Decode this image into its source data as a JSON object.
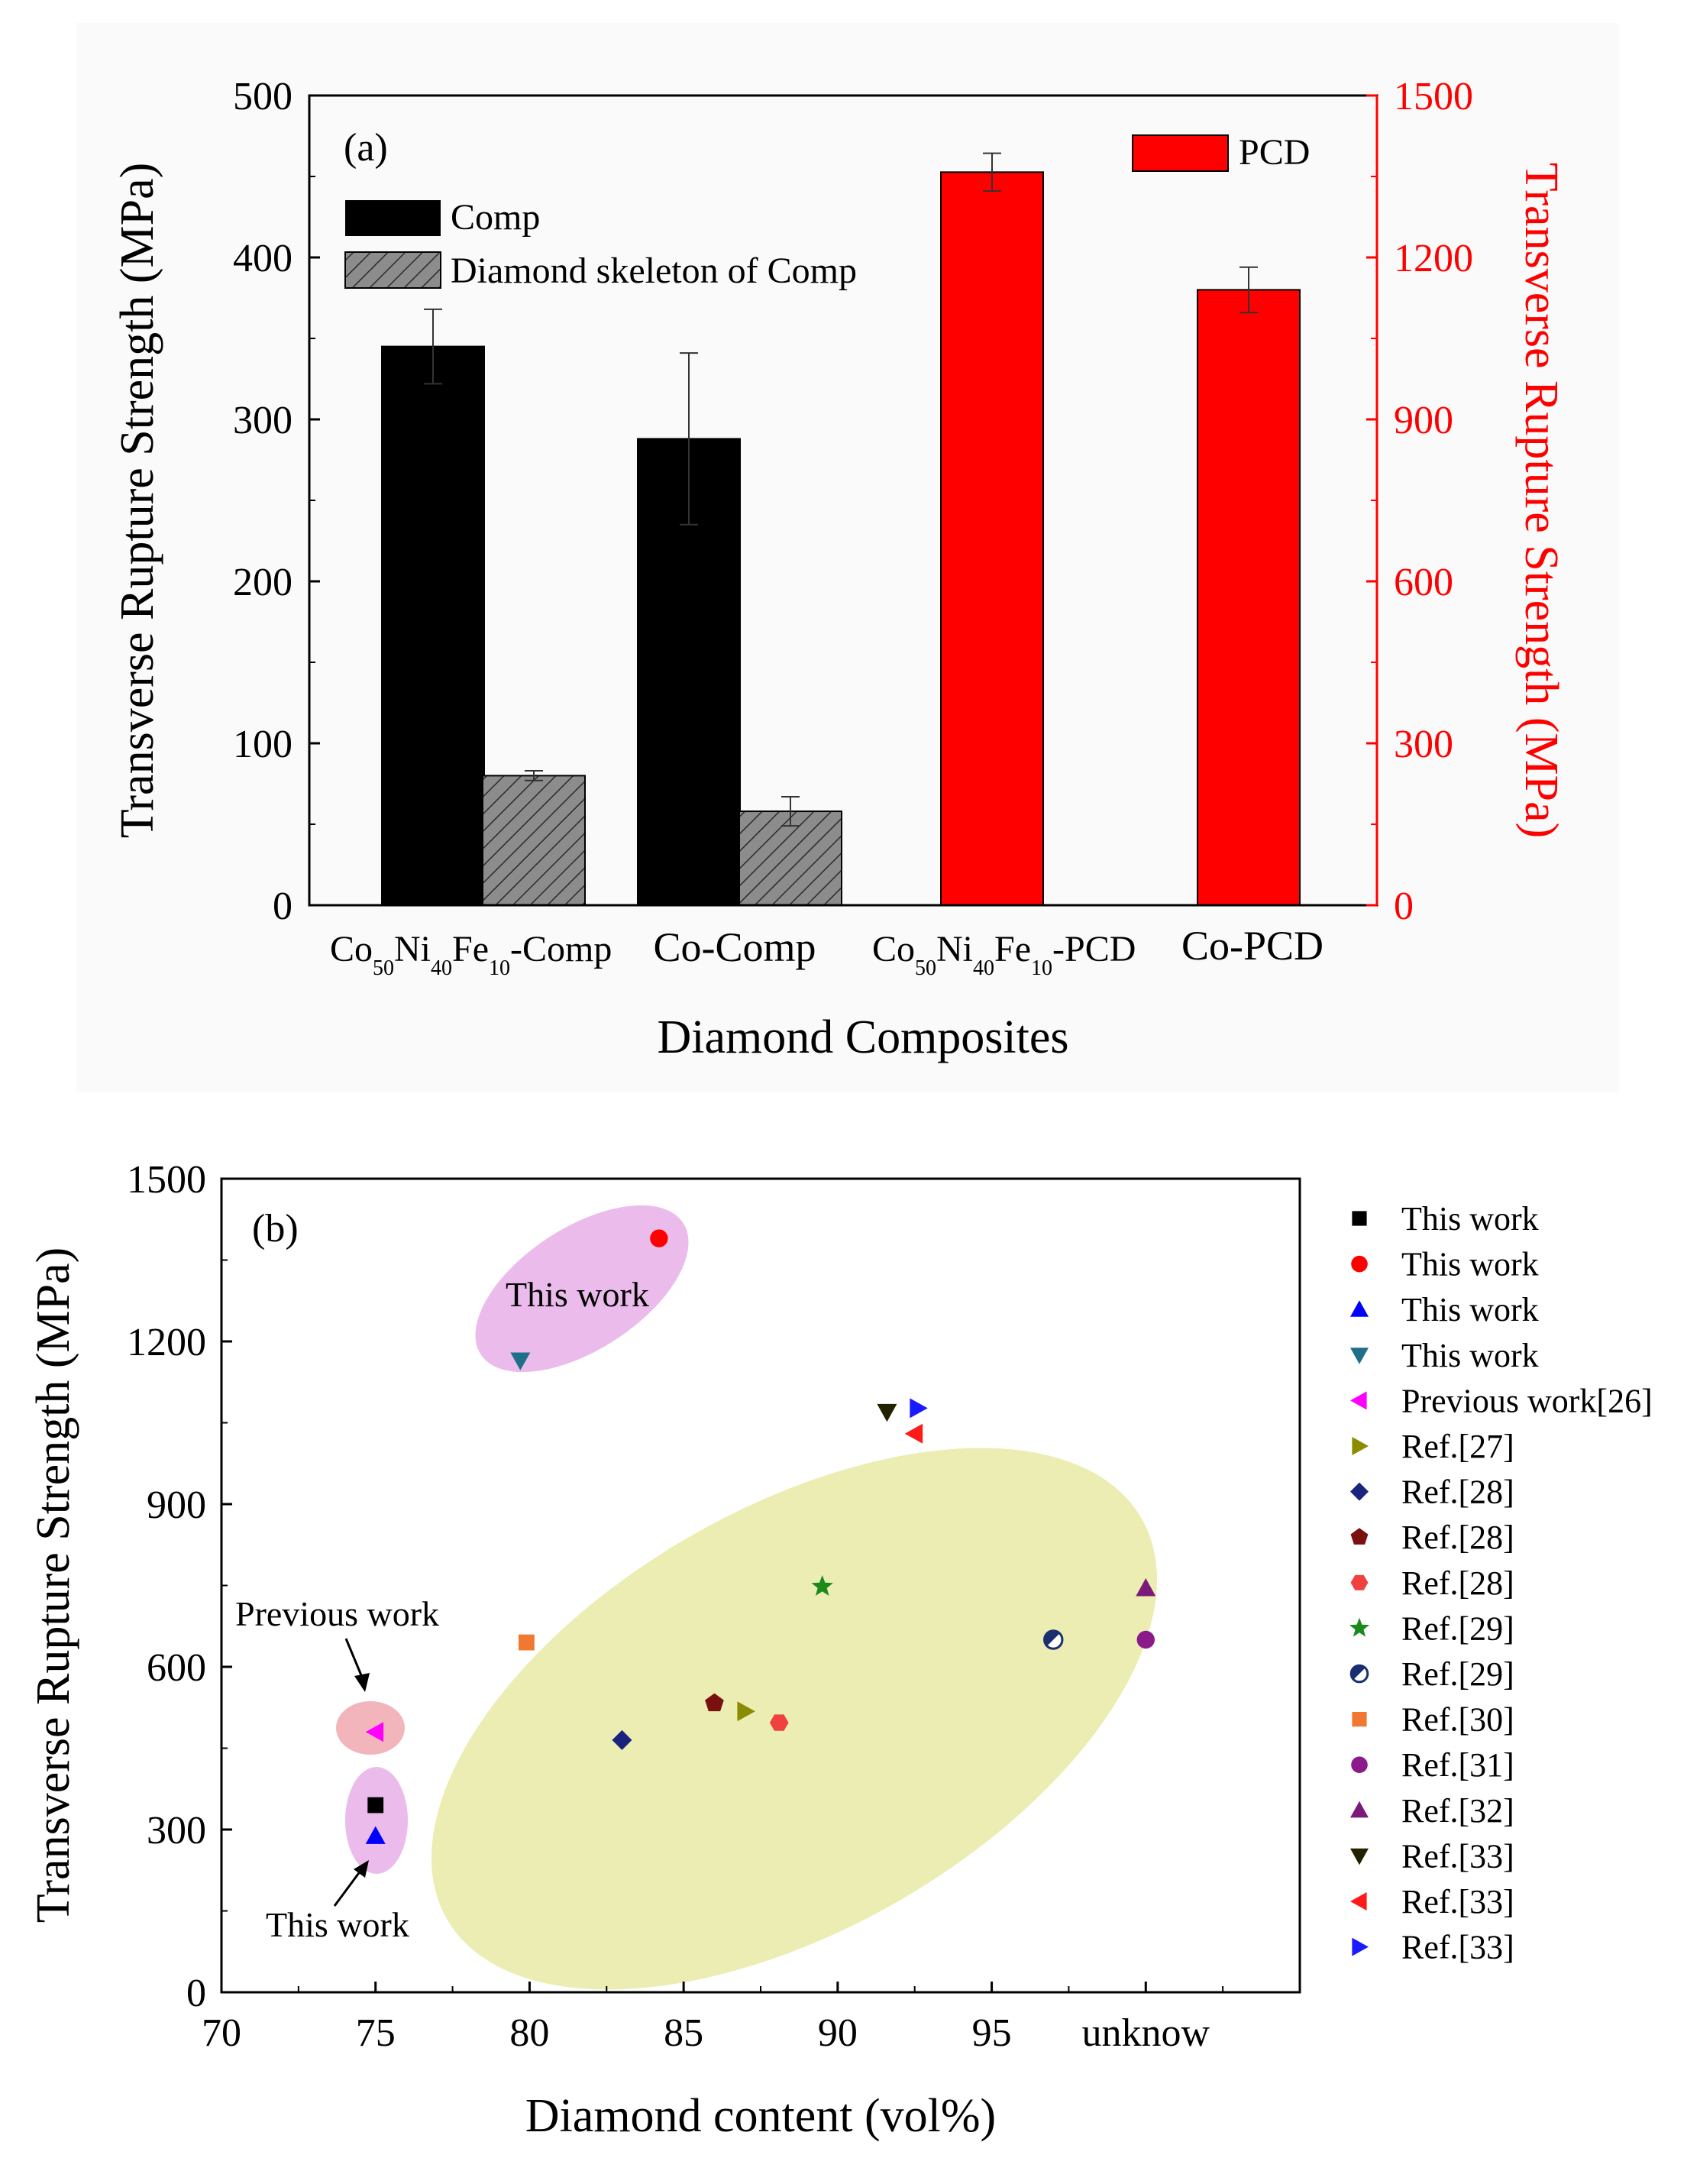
{
  "chart_data": [
    {
      "type": "bar",
      "panel_label": "(a)",
      "xlabel": "Diamond Composites",
      "ylabel": "Transverse Rupture Strength (MPa)",
      "ylabel_right": "Transverse Rupture Strength (MPa)",
      "ylim": [
        0,
        500
      ],
      "ylim_right": [
        0,
        1500
      ],
      "yticks": [
        "0",
        "100",
        "200",
        "300",
        "400",
        "500"
      ],
      "yticks_right": [
        "0",
        "300",
        "600",
        "900",
        "1200",
        "1500"
      ],
      "categories": [
        {
          "main1": "Co",
          "sub1": "50",
          "main2": "Ni",
          "sub2": "40",
          "main3": "Fe",
          "sub3": "10",
          "tail": "-Comp"
        },
        {
          "text": "Co-Comp"
        },
        {
          "main1": "Co",
          "sub1": "50",
          "main2": "Ni",
          "sub2": "40",
          "main3": "Fe",
          "sub3": "10",
          "tail": "-PCD"
        },
        {
          "text": "Co-PCD"
        }
      ],
      "series": [
        {
          "name": "Comp",
          "axis": "left",
          "color": "#000000",
          "pattern": "solid",
          "values": [
            345,
            288,
            null,
            null
          ],
          "errors": [
            23,
            53,
            null,
            null
          ]
        },
        {
          "name": "Diamond skeleton of Comp",
          "axis": "left",
          "color": "#808080",
          "pattern": "hatched",
          "values": [
            80,
            58,
            null,
            null
          ],
          "errors": [
            3,
            9,
            null,
            null
          ]
        },
        {
          "name": "PCD",
          "axis": "right",
          "color": "#ff0000",
          "pattern": "solid",
          "values": [
            null,
            null,
            1358,
            1140
          ],
          "errors": [
            null,
            null,
            35,
            42
          ]
        }
      ],
      "right_axis_color": "#ff0000"
    },
    {
      "type": "scatter",
      "panel_label": "(b)",
      "xlabel": "Diamond content (vol%)",
      "ylabel": "Transverse Rupture Strength (MPa)",
      "xlim": [
        70,
        105
      ],
      "ylim": [
        0,
        1500
      ],
      "xticks": [
        "70",
        "75",
        "80",
        "85",
        "90",
        "95",
        "unknow"
      ],
      "yticks": [
        "0",
        "300",
        "600",
        "900",
        "1200",
        "1500"
      ],
      "annotations": [
        {
          "text": "This work",
          "target": "upper cluster"
        },
        {
          "text": "Previous work",
          "target": "previous work point"
        },
        {
          "text": "This work",
          "target": "lower cluster"
        }
      ],
      "series": [
        {
          "name": "This work",
          "marker": "square",
          "color": "#000000",
          "x": 75,
          "y": 345
        },
        {
          "name": "This work",
          "marker": "circle",
          "color": "#ff0000",
          "x": 84.2,
          "y": 1390
        },
        {
          "name": "This work",
          "marker": "triangle-up",
          "color": "#0000ff",
          "x": 75,
          "y": 288
        },
        {
          "name": "This work",
          "marker": "triangle-down",
          "color": "#1f6f8b",
          "x": 79.7,
          "y": 1165
        },
        {
          "name": "Previous work[26]",
          "marker": "triangle-left",
          "color": "#ff00ff",
          "x": 75,
          "y": 480
        },
        {
          "name": "Ref.[27]",
          "marker": "triangle-right",
          "color": "#8b8b00",
          "x": 87,
          "y": 518
        },
        {
          "name": "Ref.[28]",
          "marker": "diamond",
          "color": "#1a237e",
          "x": 83,
          "y": 465
        },
        {
          "name": "Ref.[28]",
          "marker": "pentagon",
          "color": "#7b1010",
          "x": 86,
          "y": 533
        },
        {
          "name": "Ref.[28]",
          "marker": "hexagon",
          "color": "#f04040",
          "x": 88.1,
          "y": 497
        },
        {
          "name": "Ref.[29]",
          "marker": "star",
          "color": "#1a8a1a",
          "x": 89.5,
          "y": 748
        },
        {
          "name": "Ref.[29]",
          "marker": "half-circle",
          "color": "#1a2f6f",
          "x": 97,
          "y": 650
        },
        {
          "name": "Ref.[30]",
          "marker": "square",
          "color": "#f07830",
          "x": 79.9,
          "y": 645
        },
        {
          "name": "Ref.[31]",
          "marker": "circle",
          "color": "#8b1a8b",
          "x": 100,
          "y": 650
        },
        {
          "name": "Ref.[32]",
          "marker": "triangle-up",
          "color": "#7b1a7b",
          "x": 100,
          "y": 745
        },
        {
          "name": "Ref.[33]",
          "marker": "triangle-down",
          "color": "#222200",
          "x": 91.6,
          "y": 1070
        },
        {
          "name": "Ref.[33]",
          "marker": "triangle-left",
          "color": "#ff1a1a",
          "x": 92.5,
          "y": 1030
        },
        {
          "name": "Ref.[33]",
          "marker": "triangle-right",
          "color": "#1a1aff",
          "x": 92.6,
          "y": 1077
        }
      ]
    }
  ]
}
